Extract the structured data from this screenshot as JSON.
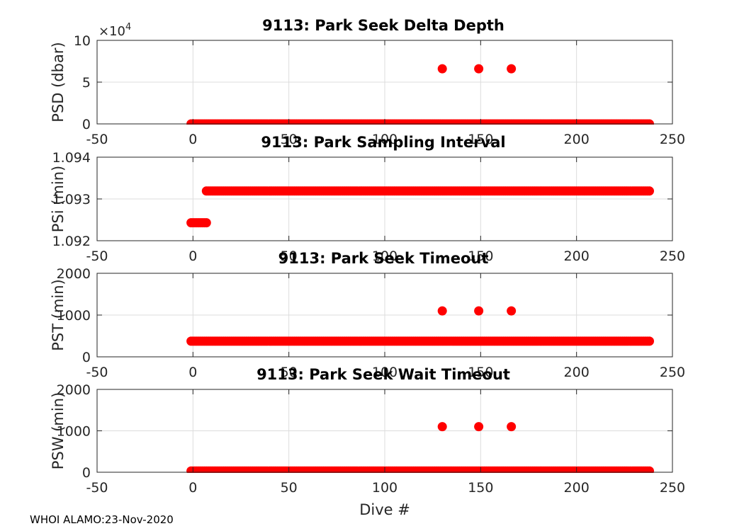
{
  "footer": "WHOI ALAMO:23-Nov-2020",
  "marker_color": "#ff0000",
  "chart_data": [
    {
      "type": "scatter",
      "title": "9113: Park Seek Delta Depth",
      "ylabel": "PSD (dbar)",
      "xlabel": "",
      "xlim": [
        -50,
        250
      ],
      "ylim": [
        0,
        10
      ],
      "xticks": [
        "-50",
        "0",
        "50",
        "100",
        "150",
        "200",
        "250"
      ],
      "yticks": [
        "0",
        "5",
        "10"
      ],
      "exponent_label": "×10^4",
      "grid": true,
      "series": [
        {
          "x_range": [
            -1,
            238
          ],
          "y": 0
        },
        {
          "x": [
            130,
            149,
            166
          ],
          "y": [
            6.6,
            6.6,
            6.6
          ]
        }
      ]
    },
    {
      "type": "scatter",
      "title": "9113: Park Sampling Interval",
      "ylabel": "PSi (min)",
      "xlabel": "",
      "xlim": [
        -50,
        250
      ],
      "ylim": [
        1.092,
        1.094
      ],
      "xticks": [
        "-50",
        "0",
        "50",
        "100",
        "150",
        "200",
        "250"
      ],
      "yticks": [
        "1.092",
        "1.093",
        "1.094"
      ],
      "grid": true,
      "series": [
        {
          "x_range": [
            -1,
            7
          ],
          "y": 1.09243
        },
        {
          "x_range": [
            7,
            238
          ],
          "y": 1.09319
        }
      ]
    },
    {
      "type": "scatter",
      "title": "9113: Park Seek Timeout",
      "ylabel": "PST (min)",
      "xlabel": "",
      "xlim": [
        -50,
        250
      ],
      "ylim": [
        0,
        2000
      ],
      "xticks": [
        "-50",
        "0",
        "50",
        "100",
        "150",
        "200",
        "250"
      ],
      "yticks": [
        "0",
        "1000",
        "2000"
      ],
      "grid": true,
      "series": [
        {
          "x_range": [
            -1,
            238
          ],
          "y": 375
        },
        {
          "x": [
            130,
            149,
            166
          ],
          "y": [
            1100,
            1100,
            1100
          ]
        }
      ]
    },
    {
      "type": "scatter",
      "title": "9113: Park Seek Wait Timeout",
      "ylabel": "PSW (min)",
      "xlabel": "Dive #",
      "xlim": [
        -50,
        250
      ],
      "ylim": [
        0,
        2000
      ],
      "xticks": [
        "-50",
        "0",
        "50",
        "100",
        "150",
        "200",
        "250"
      ],
      "yticks": [
        "0",
        "1000",
        "2000"
      ],
      "grid": true,
      "series": [
        {
          "x_range": [
            -1,
            238
          ],
          "y": 30
        },
        {
          "x": [
            130,
            149,
            166
          ],
          "y": [
            1100,
            1100,
            1100
          ]
        }
      ]
    }
  ]
}
